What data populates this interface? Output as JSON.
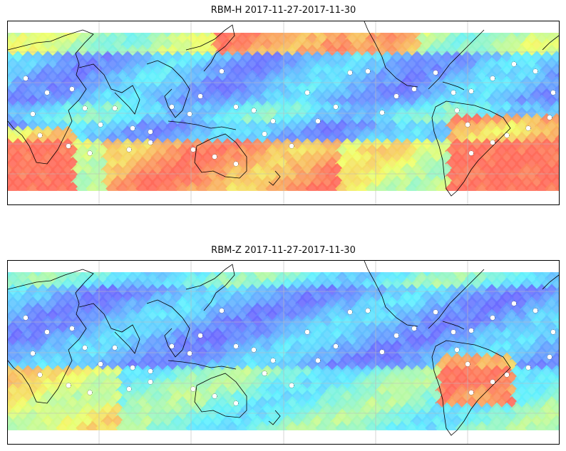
{
  "panels": [
    {
      "title": "RBM-H 2017-11-27-2017-11-30",
      "field": "rbm-h",
      "palette": {
        "low": "#6a6aff",
        "mid": "#5ff0ff",
        "high_mid": "#f2ff66",
        "high": "#ff6a5a"
      }
    },
    {
      "title": "RBM-Z 2017-11-27-2017-11-30",
      "field": "rbm-z",
      "palette": {
        "low": "#6a6aff",
        "mid": "#5ff0ff",
        "high_mid": "#f2ff66",
        "high": "#ff6a5a"
      }
    }
  ]
}
